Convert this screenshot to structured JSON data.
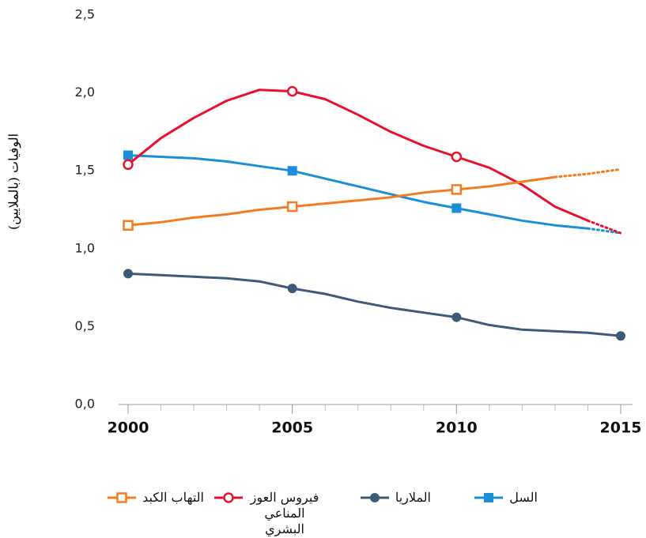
{
  "chart_data": {
    "type": "line",
    "y_label": "الوفيات (بالملايين)",
    "x": [
      2000,
      2001,
      2002,
      2003,
      2004,
      2005,
      2006,
      2007,
      2008,
      2009,
      2010,
      2011,
      2012,
      2013,
      2014,
      2015
    ],
    "xlim": [
      2000,
      2015
    ],
    "xticks": [
      2000,
      2005,
      2010,
      2015
    ],
    "ylim": [
      0,
      2.5
    ],
    "yticks": [
      {
        "value": 0,
        "label": "0,0"
      },
      {
        "value": 0.5,
        "label": "0,5"
      },
      {
        "value": 1,
        "label": "1,0"
      },
      {
        "value": 1.5,
        "label": "1,5"
      },
      {
        "value": 2,
        "label": "2,0"
      },
      {
        "value": 2.5,
        "label": "2,5"
      }
    ],
    "grid": false,
    "legend": "bottom",
    "series": [
      {
        "name": "السل",
        "color": "#1a8fd8",
        "marker": "square",
        "marker_indices": [
          0,
          5,
          10
        ],
        "dotted_from": 14,
        "values": [
          1.6,
          1.59,
          1.58,
          1.56,
          1.53,
          1.5,
          1.45,
          1.4,
          1.35,
          1.3,
          1.26,
          1.22,
          1.18,
          1.15,
          1.13,
          1.1
        ]
      },
      {
        "name": "الملاريا",
        "color": "#3d5a78",
        "marker": "circle",
        "marker_indices": [
          0,
          5,
          10,
          15
        ],
        "dotted_from": null,
        "values": [
          0.84,
          0.83,
          0.82,
          0.81,
          0.79,
          0.745,
          0.71,
          0.66,
          0.62,
          0.59,
          0.56,
          0.51,
          0.48,
          0.47,
          0.46,
          0.44
        ]
      },
      {
        "name": "فيروس العوز المناعي البشري",
        "color": "#e8112d",
        "marker": "circle-open",
        "marker_indices": [
          0,
          5,
          10
        ],
        "dotted_from": 14,
        "values": [
          1.54,
          1.71,
          1.84,
          1.95,
          2.02,
          2.01,
          1.96,
          1.86,
          1.75,
          1.66,
          1.59,
          1.52,
          1.41,
          1.27,
          1.18,
          1.1
        ]
      },
      {
        "name": "التهاب الكبد",
        "color": "#f47b20",
        "marker": "square-open",
        "marker_indices": [
          0,
          5,
          10
        ],
        "dotted_from": 13,
        "values": [
          1.15,
          1.17,
          1.2,
          1.22,
          1.25,
          1.27,
          1.29,
          1.31,
          1.33,
          1.36,
          1.38,
          1.4,
          1.43,
          1.46,
          1.48,
          1.51
        ]
      }
    ]
  }
}
